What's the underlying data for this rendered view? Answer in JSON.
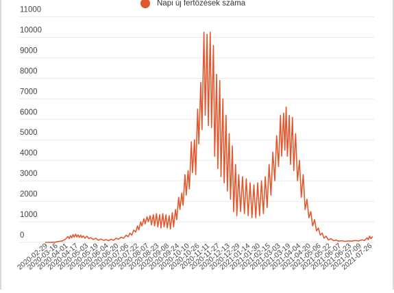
{
  "chart_data": {
    "type": "line",
    "series": [
      {
        "name": "Napi új fertőzések száma",
        "color": "#e2582e",
        "points": [
          [
            "2020-02-29",
            0
          ],
          [
            "2020-03-10",
            2
          ],
          [
            "2020-03-16",
            10
          ],
          [
            "2020-03-20",
            40
          ],
          [
            "2020-03-27",
            70
          ],
          [
            "2020-04-01",
            150
          ],
          [
            "2020-04-05",
            280
          ],
          [
            "2020-04-07",
            180
          ],
          [
            "2020-04-09",
            330
          ],
          [
            "2020-04-11",
            220
          ],
          [
            "2020-04-13",
            380
          ],
          [
            "2020-04-15",
            250
          ],
          [
            "2020-04-17",
            400
          ],
          [
            "2020-04-19",
            260
          ],
          [
            "2020-04-21",
            370
          ],
          [
            "2020-04-23",
            240
          ],
          [
            "2020-04-25",
            350
          ],
          [
            "2020-04-27",
            230
          ],
          [
            "2020-04-29",
            320
          ],
          [
            "2020-05-02",
            200
          ],
          [
            "2020-05-05",
            300
          ],
          [
            "2020-05-08",
            180
          ],
          [
            "2020-05-11",
            230
          ],
          [
            "2020-05-15",
            140
          ],
          [
            "2020-05-19",
            200
          ],
          [
            "2020-05-23",
            100
          ],
          [
            "2020-05-27",
            160
          ],
          [
            "2020-06-01",
            90
          ],
          [
            "2020-06-04",
            140
          ],
          [
            "2020-06-08",
            80
          ],
          [
            "2020-06-12",
            150
          ],
          [
            "2020-06-16",
            100
          ],
          [
            "2020-06-20",
            200
          ],
          [
            "2020-06-24",
            150
          ],
          [
            "2020-06-28",
            250
          ],
          [
            "2020-07-02",
            200
          ],
          [
            "2020-07-06",
            350
          ],
          [
            "2020-07-09",
            270
          ],
          [
            "2020-07-12",
            450
          ],
          [
            "2020-07-15",
            350
          ],
          [
            "2020-07-18",
            600
          ],
          [
            "2020-07-21",
            500
          ],
          [
            "2020-07-24",
            800
          ],
          [
            "2020-07-26",
            600
          ],
          [
            "2020-07-29",
            1000
          ],
          [
            "2020-07-31",
            800
          ],
          [
            "2020-08-03",
            1150
          ],
          [
            "2020-08-05",
            900
          ],
          [
            "2020-08-08",
            1250
          ],
          [
            "2020-08-10",
            1000
          ],
          [
            "2020-08-13",
            1300
          ],
          [
            "2020-08-15",
            850
          ],
          [
            "2020-08-18",
            1350
          ],
          [
            "2020-08-20",
            800
          ],
          [
            "2020-08-23",
            1400
          ],
          [
            "2020-08-25",
            750
          ],
          [
            "2020-08-28",
            1350
          ],
          [
            "2020-08-30",
            700
          ],
          [
            "2020-09-02",
            1400
          ],
          [
            "2020-09-04",
            750
          ],
          [
            "2020-09-07",
            1350
          ],
          [
            "2020-09-09",
            700
          ],
          [
            "2020-09-12",
            1300
          ],
          [
            "2020-09-14",
            650
          ],
          [
            "2020-09-17",
            1450
          ],
          [
            "2020-09-19",
            750
          ],
          [
            "2020-09-22",
            1600
          ],
          [
            "2020-09-24",
            1100
          ],
          [
            "2020-09-27",
            2200
          ],
          [
            "2020-09-29",
            1600
          ],
          [
            "2020-10-02",
            2400
          ],
          [
            "2020-10-04",
            1800
          ],
          [
            "2020-10-07",
            3300
          ],
          [
            "2020-10-09",
            2300
          ],
          [
            "2020-10-12",
            3500
          ],
          [
            "2020-10-14",
            2600
          ],
          [
            "2020-10-17",
            4900
          ],
          [
            "2020-10-19",
            3400
          ],
          [
            "2020-10-22",
            5000
          ],
          [
            "2020-10-24",
            3300
          ],
          [
            "2020-10-27",
            6500
          ],
          [
            "2020-10-29",
            4800
          ],
          [
            "2020-11-01",
            7800
          ],
          [
            "2020-11-03",
            5500
          ],
          [
            "2020-11-06",
            10250
          ],
          [
            "2020-11-08",
            6200
          ],
          [
            "2020-11-11",
            10150
          ],
          [
            "2020-11-13",
            5700
          ],
          [
            "2020-11-16",
            10250
          ],
          [
            "2020-11-18",
            5600
          ],
          [
            "2020-11-21",
            9600
          ],
          [
            "2020-11-23",
            4200
          ],
          [
            "2020-11-26",
            8200
          ],
          [
            "2020-11-28",
            3600
          ],
          [
            "2020-12-01",
            7900
          ],
          [
            "2020-12-03",
            3200
          ],
          [
            "2020-12-06",
            7000
          ],
          [
            "2020-12-08",
            2900
          ],
          [
            "2020-12-11",
            6200
          ],
          [
            "2020-12-13",
            2500
          ],
          [
            "2020-12-16",
            5300
          ],
          [
            "2020-12-18",
            2100
          ],
          [
            "2020-12-21",
            4700
          ],
          [
            "2020-12-23",
            1500
          ],
          [
            "2020-12-26",
            3800
          ],
          [
            "2020-12-28",
            1300
          ],
          [
            "2020-12-31",
            3300
          ],
          [
            "2021-01-03",
            1500
          ],
          [
            "2021-01-06",
            3200
          ],
          [
            "2021-01-09",
            1400
          ],
          [
            "2021-01-12",
            3100
          ],
          [
            "2021-01-15",
            1300
          ],
          [
            "2021-01-18",
            2900
          ],
          [
            "2021-01-21",
            1200
          ],
          [
            "2021-01-24",
            2800
          ],
          [
            "2021-01-27",
            1200
          ],
          [
            "2021-01-30",
            2900
          ],
          [
            "2021-02-02",
            1300
          ],
          [
            "2021-02-05",
            3000
          ],
          [
            "2021-02-08",
            1400
          ],
          [
            "2021-02-11",
            3200
          ],
          [
            "2021-02-14",
            1700
          ],
          [
            "2021-02-17",
            3800
          ],
          [
            "2021-02-20",
            2300
          ],
          [
            "2021-02-23",
            4400
          ],
          [
            "2021-02-26",
            3000
          ],
          [
            "2021-03-01",
            5200
          ],
          [
            "2021-03-04",
            3700
          ],
          [
            "2021-03-07",
            6200
          ],
          [
            "2021-03-09",
            4200
          ],
          [
            "2021-03-12",
            6300
          ],
          [
            "2021-03-14",
            4500
          ],
          [
            "2021-03-16",
            6600
          ],
          [
            "2021-03-18",
            4200
          ],
          [
            "2021-03-21",
            6200
          ],
          [
            "2021-03-23",
            3800
          ],
          [
            "2021-03-26",
            6100
          ],
          [
            "2021-03-28",
            3500
          ],
          [
            "2021-03-31",
            5300
          ],
          [
            "2021-04-03",
            3000
          ],
          [
            "2021-04-06",
            4000
          ],
          [
            "2021-04-09",
            2200
          ],
          [
            "2021-04-12",
            3300
          ],
          [
            "2021-04-15",
            1600
          ],
          [
            "2021-04-18",
            2100
          ],
          [
            "2021-04-21",
            1200
          ],
          [
            "2021-04-24",
            1500
          ],
          [
            "2021-04-27",
            800
          ],
          [
            "2021-04-30",
            1100
          ],
          [
            "2021-05-03",
            550
          ],
          [
            "2021-05-06",
            700
          ],
          [
            "2021-05-09",
            350
          ],
          [
            "2021-05-12",
            450
          ],
          [
            "2021-05-15",
            200
          ],
          [
            "2021-05-18",
            300
          ],
          [
            "2021-05-22",
            120
          ],
          [
            "2021-05-26",
            180
          ],
          [
            "2021-05-30",
            80
          ],
          [
            "2021-06-03",
            110
          ],
          [
            "2021-06-07",
            60
          ],
          [
            "2021-06-12",
            80
          ],
          [
            "2021-06-17",
            50
          ],
          [
            "2021-06-23",
            70
          ],
          [
            "2021-06-28",
            60
          ],
          [
            "2021-07-03",
            90
          ],
          [
            "2021-07-09",
            70
          ],
          [
            "2021-07-14",
            120
          ],
          [
            "2021-07-18",
            90
          ],
          [
            "2021-07-22",
            220
          ],
          [
            "2021-07-24",
            130
          ],
          [
            "2021-07-26",
            300
          ],
          [
            "2021-07-28",
            180
          ],
          [
            "2021-07-31",
            280
          ]
        ]
      }
    ],
    "x_ticks": [
      "2020-02-29",
      "2020-03-16",
      "2020-04-01",
      "2020-04-17",
      "2020-05-03",
      "2020-05-19",
      "2020-06-04",
      "2020-06-20",
      "2020-07-06",
      "2020-07-22",
      "2020-08-07",
      "2020-08-23",
      "2020-09-08",
      "2020-09-24",
      "2020-10-10",
      "2020-10-26",
      "2020-11-11",
      "2020-11-27",
      "2020-12-13",
      "2020-12-29",
      "2021-01-14",
      "2021-01-30",
      "2021-02-15",
      "2021-03-03",
      "2021-03-19",
      "2021-04-04",
      "2021-04-20",
      "2021-05-06",
      "2021-05-22",
      "2021-06-07",
      "2021-06-23",
      "2021-07-09",
      "2021-07-26"
    ],
    "y_ticks": [
      "0",
      "1000",
      "2000",
      "3000",
      "4000",
      "5000",
      "6000",
      "7000",
      "8000",
      "9000",
      "10000",
      "11000"
    ],
    "ylim": [
      0,
      11000
    ],
    "xlim": [
      "2020-02-29",
      "2021-07-31"
    ],
    "grid": true,
    "legend_position": "top-center"
  }
}
